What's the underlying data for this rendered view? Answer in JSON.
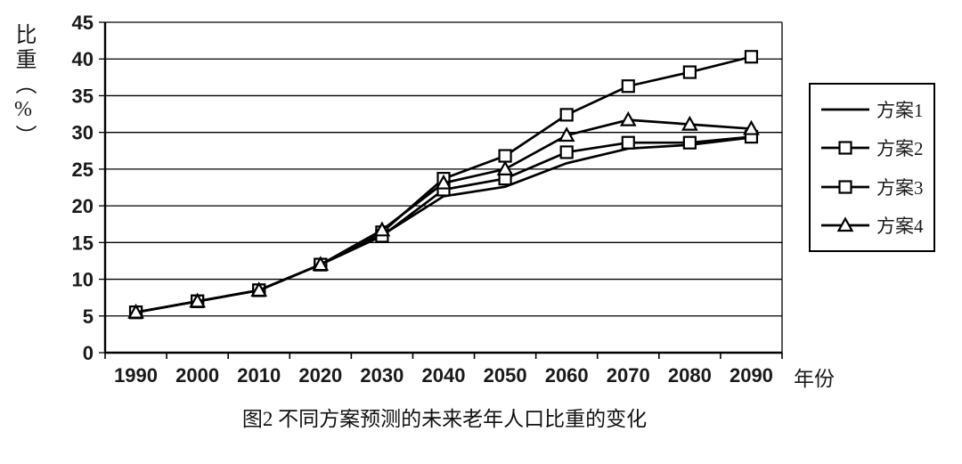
{
  "chart": {
    "y_axis_title": "比重（%）",
    "x_axis_unit": "年份",
    "caption": "图2  不同方案预测的未来老年人口比重的变化",
    "background_color": "#ffffff",
    "line_color": "#000000",
    "text_color": "#1a1a1a"
  },
  "chart_data": {
    "type": "line",
    "title": "图2  不同方案预测的未来老年人口比重的变化",
    "xlabel": "年份",
    "ylabel": "比重（%）",
    "categories": [
      "1990",
      "2000",
      "2010",
      "2020",
      "2030",
      "2040",
      "2050",
      "2060",
      "2070",
      "2080",
      "2090"
    ],
    "series": [
      {
        "name": "方案1",
        "marker": "none",
        "values": [
          5.5,
          7.0,
          8.5,
          12.0,
          16.0,
          21.3,
          22.6,
          25.8,
          27.8,
          28.3,
          29.3
        ]
      },
      {
        "name": "方案2",
        "marker": "square",
        "values": [
          5.5,
          7.0,
          8.5,
          12.0,
          16.4,
          23.7,
          26.8,
          32.4,
          36.3,
          38.2,
          40.3
        ]
      },
      {
        "name": "方案3",
        "marker": "square",
        "values": [
          5.5,
          7.0,
          8.5,
          12.0,
          15.9,
          22.2,
          23.7,
          27.3,
          28.6,
          28.6,
          29.4
        ]
      },
      {
        "name": "方案4",
        "marker": "triangle",
        "values": [
          5.5,
          7.0,
          8.5,
          12.0,
          16.7,
          23.1,
          25.0,
          29.6,
          31.7,
          31.1,
          30.5
        ]
      }
    ],
    "ylim": [
      0,
      45
    ],
    "ytick_step": 5,
    "grid": true,
    "legend_position": "right",
    "series_color": "#000000"
  }
}
